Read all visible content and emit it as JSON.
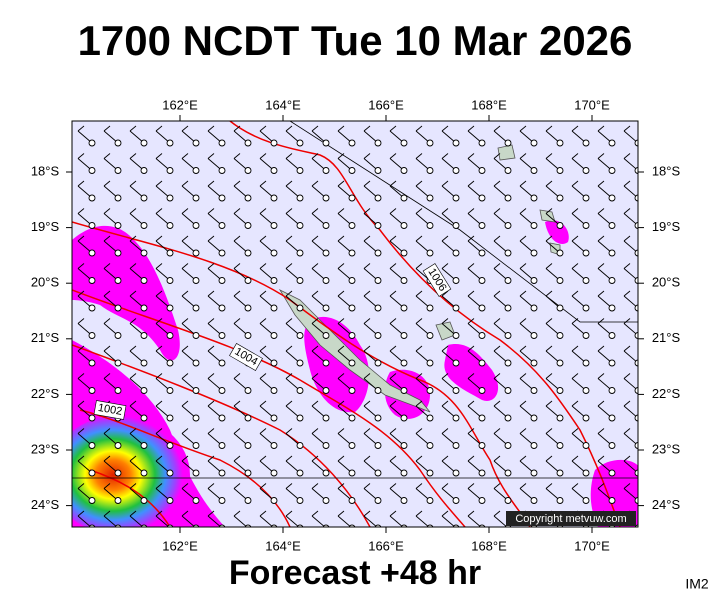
{
  "header": {
    "title": "1700 NCDT Tue 10 Mar 2026"
  },
  "map": {
    "lon_labels": [
      "162°E",
      "164°E",
      "166°E",
      "168°E",
      "170°E"
    ],
    "lat_labels": [
      "18°S",
      "19°S",
      "20°S",
      "21°S",
      "22°S",
      "23°S",
      "24°S"
    ],
    "isobar_labels": [
      "1006",
      "1004",
      "1002"
    ],
    "copyright": "Copyright metvuw.com"
  },
  "footer": {
    "forecast": "Forecast +48 hr",
    "code": "IM2"
  }
}
